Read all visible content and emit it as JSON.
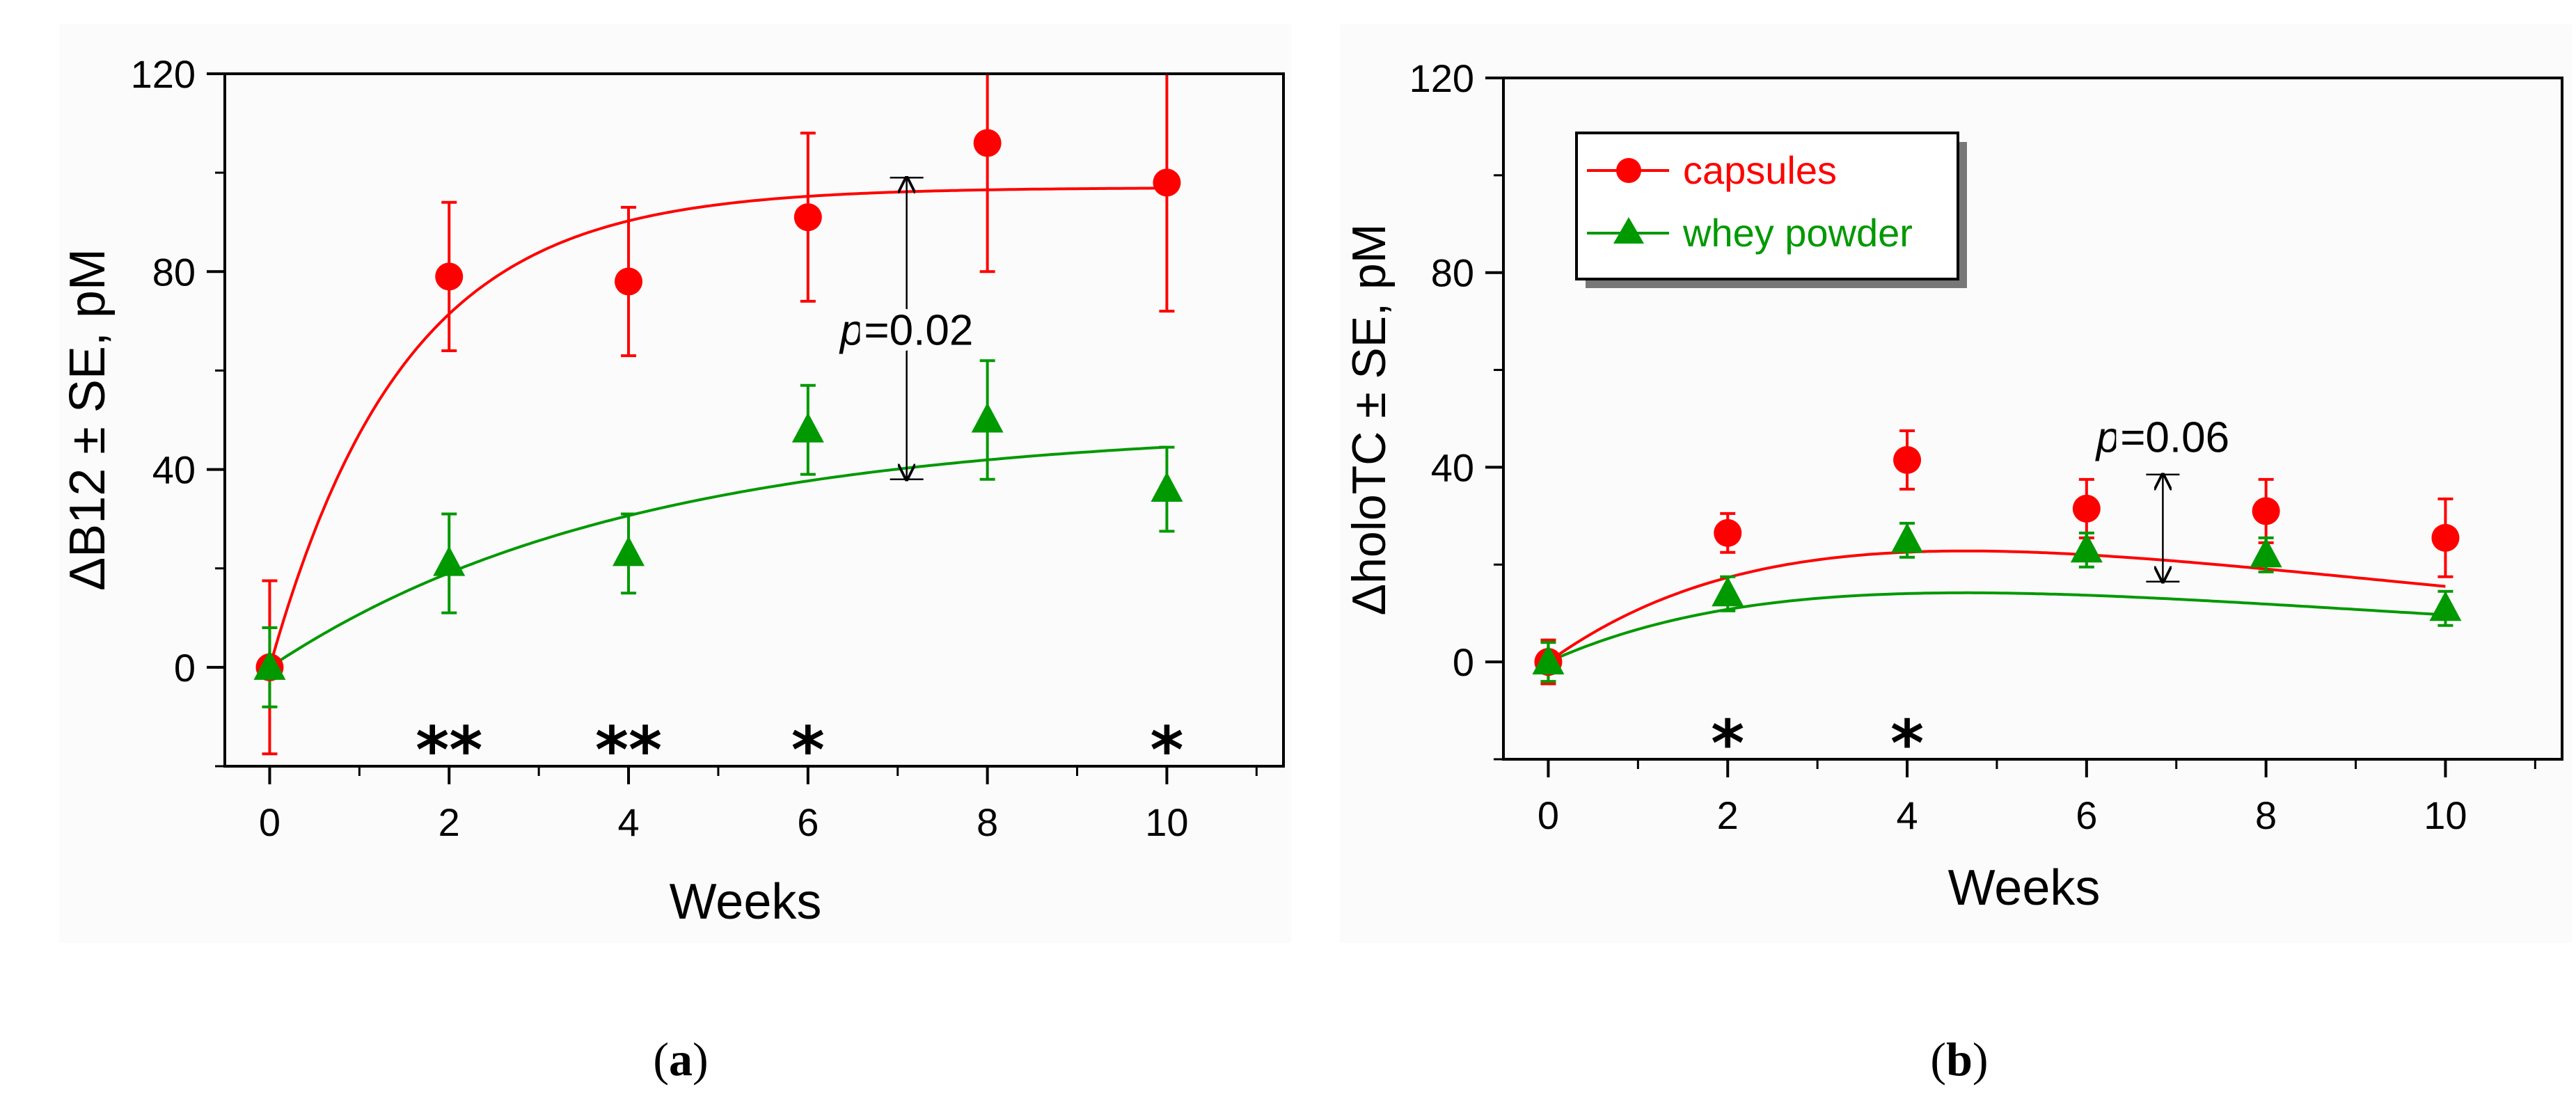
{
  "colors": {
    "capsules": "#ff0000",
    "whey": "#009900",
    "axis": "#000000"
  },
  "legend_items": [
    {
      "label": "capsules",
      "color": "#ff0000",
      "marker": "circle"
    },
    {
      "label": "whey powder",
      "color": "#009900",
      "marker": "triangle"
    }
  ],
  "chart_data": [
    {
      "panel": "(a)",
      "panel_letter": "a",
      "type": "scatter",
      "xlabel": "Weeks",
      "ylabel": "ΔB12 ± SE, pM",
      "xlim": [
        -0.5,
        11.3
      ],
      "ylim": [
        -20,
        120
      ],
      "xticks": [
        0,
        2,
        4,
        6,
        8,
        10
      ],
      "xticklabels": [
        "0",
        "2",
        "4",
        "6",
        "8",
        "10"
      ],
      "yticks": [
        0,
        40,
        80,
        120
      ],
      "yticklabels": [
        "0",
        "40",
        "80",
        "120"
      ],
      "legend": null,
      "series": [
        {
          "name": "capsules",
          "marker": "circle",
          "color": "#ff0000",
          "x": [
            0,
            2,
            4,
            6,
            8,
            10
          ],
          "y": [
            0,
            79,
            78,
            91,
            106,
            98
          ],
          "err": [
            17.5,
            15,
            15,
            17,
            26,
            26
          ],
          "fit": {
            "model": "exp_rise",
            "A": 97,
            "tau": 1.5,
            "x0": 0,
            "x1": 10
          }
        },
        {
          "name": "whey powder",
          "marker": "triangle",
          "color": "#009900",
          "x": [
            0,
            2,
            4,
            6,
            8,
            10
          ],
          "y": [
            0,
            21,
            23,
            48,
            50,
            36
          ],
          "err": [
            8,
            10,
            8,
            9,
            12,
            8.5
          ],
          "fit": {
            "model": "exp_rise",
            "A": 48.5,
            "tau": 4,
            "x0": 0,
            "x1": 10
          }
        }
      ],
      "significance": [
        {
          "x": 2,
          "label": "**"
        },
        {
          "x": 4,
          "label": "**"
        },
        {
          "x": 6,
          "label": "*"
        },
        {
          "x": 10,
          "label": "*"
        }
      ],
      "annotation": {
        "p_symbol": "p",
        "p_value": "=0.02",
        "x": 7.1,
        "y_top": 99,
        "y_bottom": 38,
        "label_y": 68
      }
    },
    {
      "panel": "(b)",
      "panel_letter": "b",
      "type": "scatter",
      "xlabel": "Weeks",
      "ylabel": "ΔholoTC ± SE, pM",
      "xlim": [
        -0.5,
        11.3
      ],
      "ylim": [
        -20,
        120
      ],
      "xticks": [
        0,
        2,
        4,
        6,
        8,
        10
      ],
      "xticklabels": [
        "0",
        "2",
        "4",
        "6",
        "8",
        "10"
      ],
      "yticks": [
        0,
        40,
        80,
        120
      ],
      "yticklabels": [
        "0",
        "40",
        "80",
        "120"
      ],
      "legend": "top-left",
      "series": [
        {
          "name": "capsules",
          "marker": "circle",
          "color": "#ff0000",
          "x": [
            0,
            2,
            4,
            6,
            8,
            10
          ],
          "y": [
            0,
            26.5,
            41.5,
            31.5,
            31,
            25.5
          ],
          "err": [
            4.5,
            4,
            6,
            6,
            6.5,
            8
          ],
          "fit": {
            "model": "gamma",
            "A": 22.8,
            "tau": 4.65,
            "x0": 0,
            "x1": 10
          }
        },
        {
          "name": "whey powder",
          "marker": "triangle",
          "color": "#009900",
          "x": [
            0,
            2,
            4,
            6,
            8,
            10
          ],
          "y": [
            0,
            14,
            25,
            23,
            22,
            11
          ],
          "err": [
            4,
            3.5,
            3.5,
            3.5,
            3.5,
            3.5
          ],
          "fit": {
            "model": "gamma",
            "A": 14.2,
            "tau": 4.65,
            "x0": 0,
            "x1": 10
          }
        }
      ],
      "significance": [
        {
          "x": 2,
          "label": "*"
        },
        {
          "x": 4,
          "label": "*"
        }
      ],
      "annotation": {
        "p_symbol": "p",
        "p_value": "=0.06",
        "x": 6.85,
        "y_top": 38.5,
        "y_bottom": 16.5,
        "label_y": 46
      }
    }
  ]
}
